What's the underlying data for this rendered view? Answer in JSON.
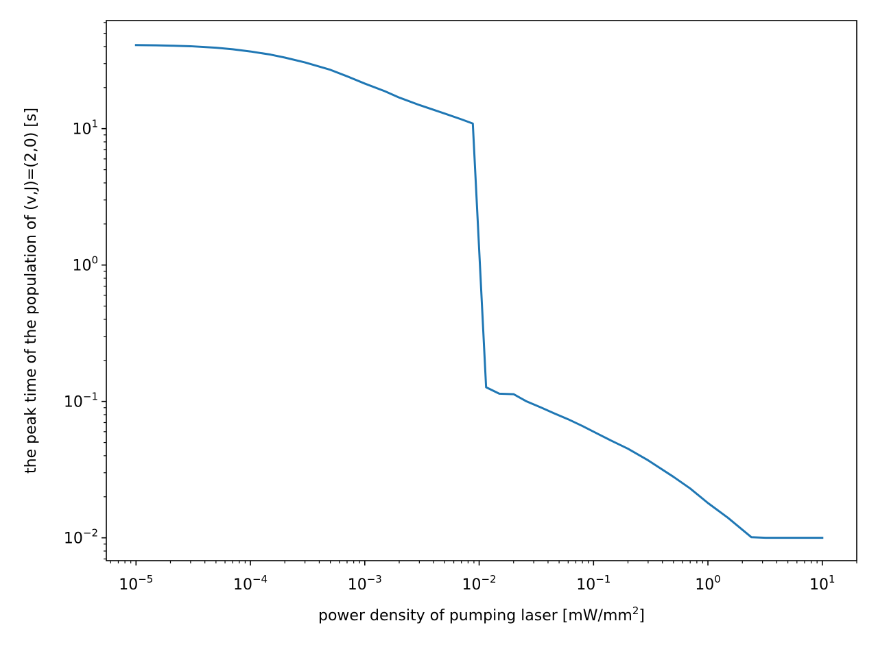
{
  "chart_data": {
    "type": "line",
    "title": "",
    "xlabel": "power density of pumping laser [mW/mm",
    "xlabel_sup": "2",
    "xlabel_suffix": "]",
    "ylabel": "the peak time of the population of (v,J)=(2,0) [s]",
    "xscale": "log",
    "yscale": "log",
    "xlim": [
      5.5e-06,
      20
    ],
    "ylim": [
      0.0068,
      62
    ],
    "grid": false,
    "legend": "none",
    "x_ticks": [
      {
        "value": 1e-05,
        "base": "10",
        "exp": "−5"
      },
      {
        "value": 0.0001,
        "base": "10",
        "exp": "−4"
      },
      {
        "value": 0.001,
        "base": "10",
        "exp": "−3"
      },
      {
        "value": 0.01,
        "base": "10",
        "exp": "−2"
      },
      {
        "value": 0.1,
        "base": "10",
        "exp": "−1"
      },
      {
        "value": 1,
        "base": "10",
        "exp": "0"
      },
      {
        "value": 10,
        "base": "10",
        "exp": "1"
      }
    ],
    "y_ticks": [
      {
        "value": 0.01,
        "base": "10",
        "exp": "−2"
      },
      {
        "value": 0.1,
        "base": "10",
        "exp": "−1"
      },
      {
        "value": 1,
        "base": "10",
        "exp": "0"
      },
      {
        "value": 10,
        "base": "10",
        "exp": "1"
      }
    ],
    "series": [
      {
        "color": "#1f77b4",
        "x": [
          1e-05,
          1.5e-05,
          2e-05,
          3e-05,
          5e-05,
          7e-05,
          0.0001,
          0.00015,
          0.0002,
          0.0003,
          0.0005,
          0.0007,
          0.001,
          0.0015,
          0.002,
          0.003,
          0.005,
          0.007,
          0.0088,
          0.0115,
          0.015,
          0.02,
          0.026,
          0.035,
          0.045,
          0.06,
          0.08,
          0.1,
          0.14,
          0.2,
          0.3,
          0.5,
          0.7,
          1.0,
          1.5,
          2.4,
          3.2,
          5,
          7,
          10
        ],
        "y": [
          41.0,
          40.8,
          40.6,
          40.2,
          39.2,
          38.2,
          36.8,
          34.9,
          33.2,
          30.6,
          27.0,
          24.2,
          21.4,
          18.8,
          16.9,
          14.9,
          12.9,
          11.7,
          10.9,
          0.127,
          0.114,
          0.113,
          0.1,
          0.09,
          0.082,
          0.074,
          0.066,
          0.06,
          0.052,
          0.045,
          0.037,
          0.028,
          0.023,
          0.018,
          0.014,
          0.0101,
          0.01,
          0.01,
          0.01,
          0.01
        ]
      }
    ]
  }
}
